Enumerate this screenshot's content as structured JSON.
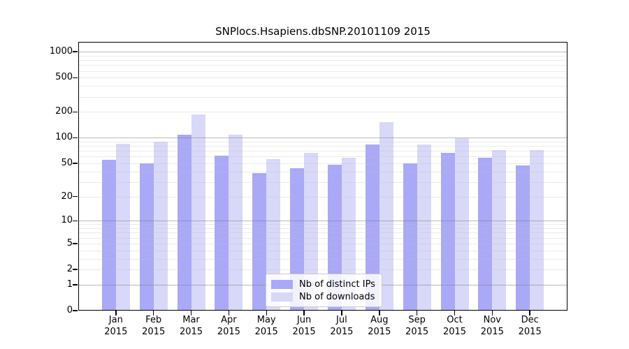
{
  "chart_data": {
    "type": "bar",
    "title": "SNPlocs.Hsapiens.dbSNP.20101109 2015",
    "categories": [
      "Jan",
      "Feb",
      "Mar",
      "Apr",
      "May",
      "Jun",
      "Jul",
      "Aug",
      "Sep",
      "Oct",
      "Nov",
      "Dec"
    ],
    "year_label": "2015",
    "series": [
      {
        "name": "Nb of distinct IPs",
        "color": "#a9a9f7",
        "values": [
          55,
          50,
          109,
          62,
          38,
          44,
          48,
          83,
          50,
          67,
          58,
          47
        ]
      },
      {
        "name": "Nb of downloads",
        "color": "#d8d8f8",
        "values": [
          85,
          90,
          186,
          108,
          56,
          67,
          58,
          153,
          83,
          98,
          72,
          72
        ]
      }
    ],
    "yticks": [
      0,
      1,
      2,
      5,
      10,
      20,
      50,
      100,
      200,
      500,
      1000
    ],
    "ylabel": "",
    "xlabel": "",
    "yscale": "log1p",
    "ylim": [
      0,
      1300
    ],
    "grid": "on",
    "major_grid_values": [
      1,
      10,
      100,
      1000
    ],
    "legend_position": "lower-center-inside"
  }
}
